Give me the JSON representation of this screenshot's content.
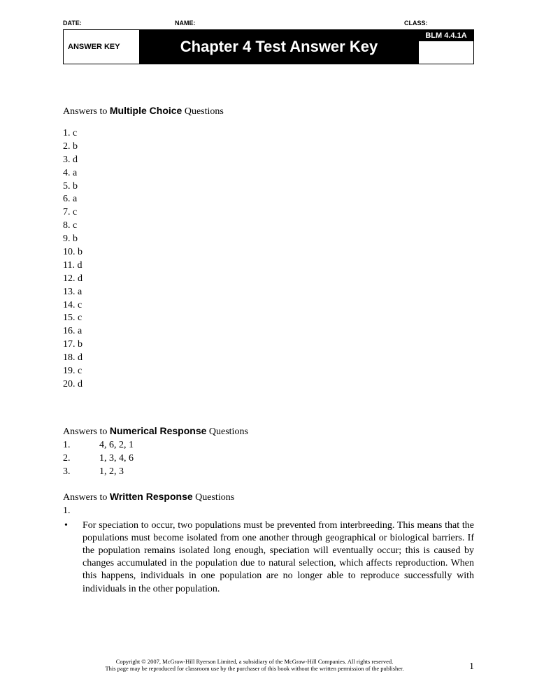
{
  "meta": {
    "date": "DATE:",
    "name": "NAME:",
    "class": "CLASS:"
  },
  "header": {
    "answerKey": "ANSWER KEY",
    "title": "Chapter 4 Test Answer Key",
    "blm": "BLM 4.4.1A"
  },
  "mc": {
    "prefix": "Answers to ",
    "bold": "Multiple Choice",
    "suffix": " Questions",
    "items": [
      "1. c",
      "2. b",
      "3. d",
      "4. a",
      "5. b",
      "6. a",
      "7. c",
      "8. c",
      "9. b",
      "10. b",
      "11. d",
      "12. d",
      "13. a",
      "14. c",
      "15. c",
      "16. a",
      "17. b",
      "18. d",
      "19. c",
      "20. d"
    ]
  },
  "nr": {
    "prefix": "Answers to ",
    "bold": "Numerical Response",
    "suffix": " Questions",
    "items": [
      {
        "num": "1.",
        "val": "4, 6, 2, 1"
      },
      {
        "num": "2.",
        "val": "1, 3, 4, 6"
      },
      {
        "num": "3.",
        "val": "1, 2, 3"
      }
    ]
  },
  "wr": {
    "prefix": "Answers to ",
    "bold": "Written Response",
    "suffix": " Questions",
    "num1": "1.",
    "bullet1": "For speciation to occur, two populations must be prevented from interbreeding. This means that the populations must become isolated from one another through geographical or biological barriers. If the population remains isolated long enough, speciation will eventually occur; this is caused by changes accumulated in the population due to natural selection, which affects reproduction. When this happens, individuals in one population are no longer able to reproduce successfully with individuals in the other population."
  },
  "footer": {
    "line1": "Copyright © 2007, McGraw-Hill Ryerson Limited, a subsidiary of the McGraw-Hill Companies. All rights reserved.",
    "line2": "This page may be reproduced for classroom use by the purchaser of this book without the written permission of the publisher.",
    "pageNum": "1"
  }
}
